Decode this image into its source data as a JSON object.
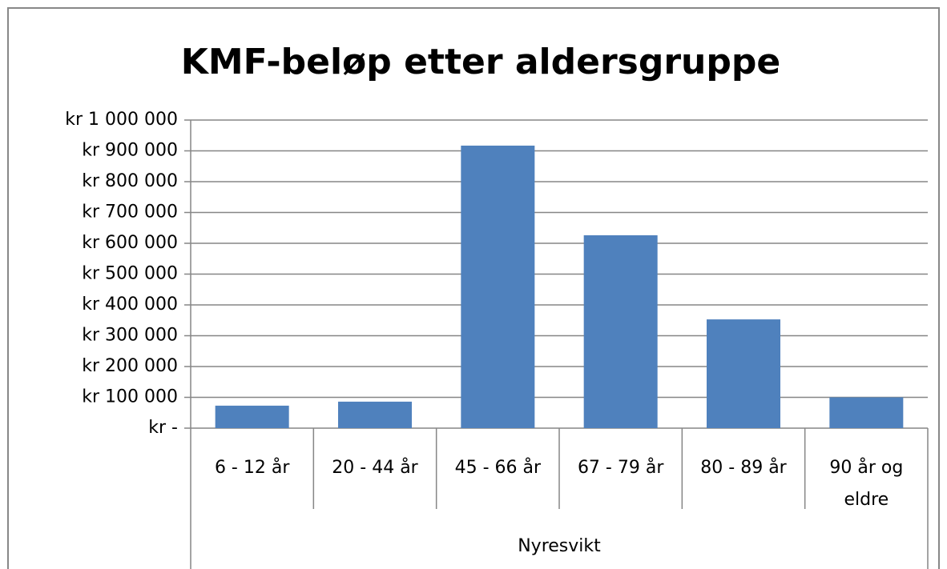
{
  "chart_data": {
    "type": "bar",
    "title": "KMF-beløp etter aldersgruppe",
    "categories": [
      "6 - 12 år",
      "20 - 44 år",
      "45 - 66 år",
      "67 - 79 år",
      "80 - 89 år",
      "90 år og eldre"
    ],
    "group_label": "Nyresvikt",
    "values": [
      73000,
      86000,
      917000,
      626000,
      353000,
      100000
    ],
    "color": "#4f81bd",
    "ylim": [
      0,
      1000000
    ],
    "yticks": [
      {
        "value": 0,
        "label": "kr -"
      },
      {
        "value": 100000,
        "label": "kr 100 000"
      },
      {
        "value": 200000,
        "label": "kr 200 000"
      },
      {
        "value": 300000,
        "label": "kr 300 000"
      },
      {
        "value": 400000,
        "label": "kr 400 000"
      },
      {
        "value": 500000,
        "label": "kr 500 000"
      },
      {
        "value": 600000,
        "label": "kr 600 000"
      },
      {
        "value": 700000,
        "label": "kr 700 000"
      },
      {
        "value": 800000,
        "label": "kr 800 000"
      },
      {
        "value": 900000,
        "label": "kr 900 000"
      },
      {
        "value": 1000000,
        "label": "kr 1 000 000"
      }
    ],
    "grid": true
  }
}
